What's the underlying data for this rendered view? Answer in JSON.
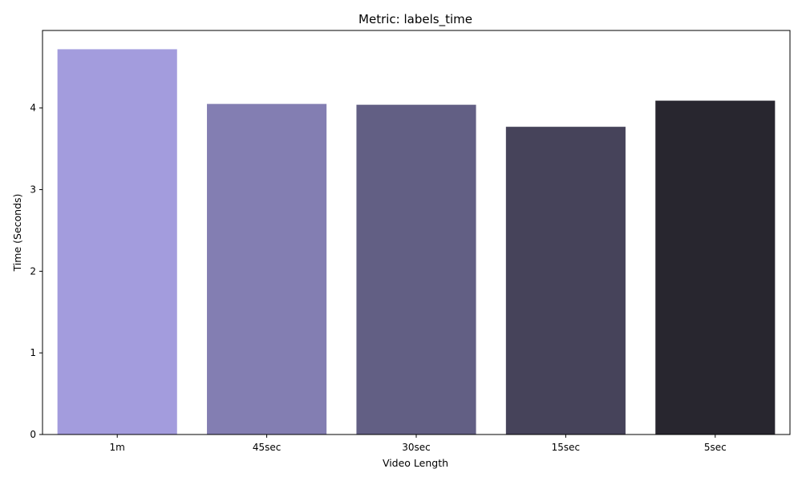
{
  "chart_data": {
    "type": "bar",
    "title": "Metric: labels_time",
    "xlabel": "Video Length",
    "ylabel": "Time (Seconds)",
    "categories": [
      "1m",
      "45sec",
      "30sec",
      "15sec",
      "5sec"
    ],
    "values": [
      4.72,
      4.05,
      4.04,
      3.77,
      4.09
    ],
    "colors": [
      "#a39cdd",
      "#837eb2",
      "#625f84",
      "#46435a",
      "#28262f"
    ],
    "ylim": [
      0,
      4.95
    ],
    "yticks": [
      0,
      1,
      2,
      3,
      4
    ],
    "grid": false,
    "legend": "none"
  }
}
